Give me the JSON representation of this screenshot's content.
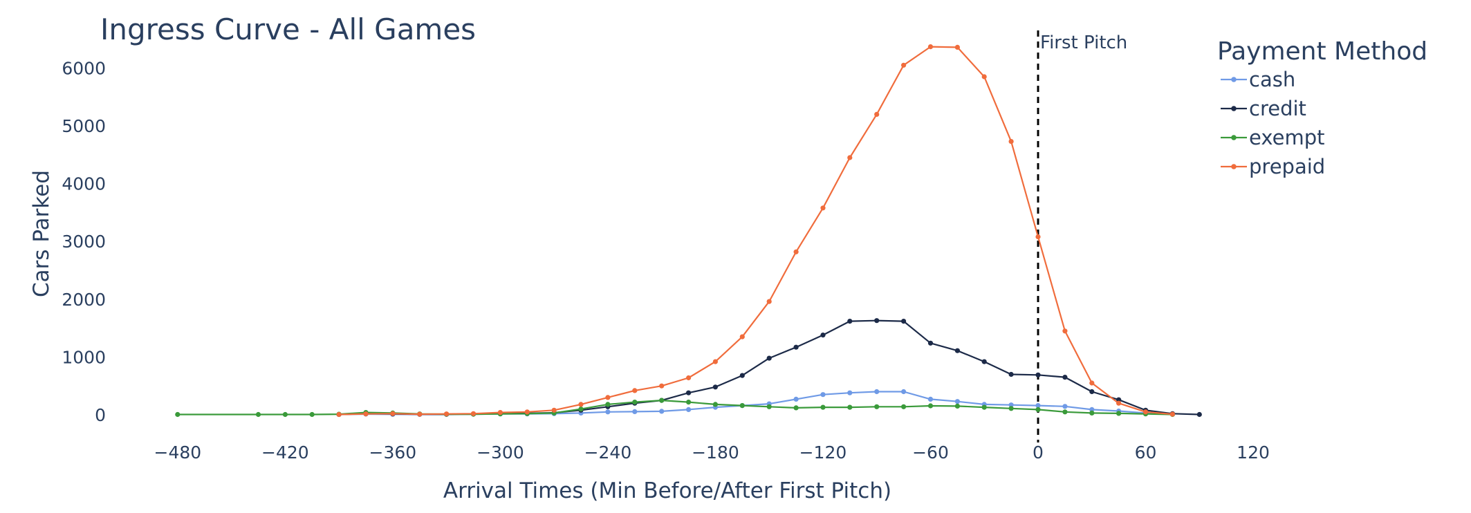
{
  "chart_data": {
    "type": "line",
    "title": "Ingress Curve - All Games",
    "xlabel": "Arrival Times (Min Before/After First Pitch)",
    "ylabel": "Cars Parked",
    "xlim": [
      -500,
      125
    ],
    "ylim": [
      -180,
      6700
    ],
    "x_ticks": [
      -480,
      -420,
      -360,
      -300,
      -240,
      -180,
      -120,
      -60,
      0,
      60,
      120
    ],
    "y_ticks": [
      0,
      1000,
      2000,
      3000,
      4000,
      5000,
      6000
    ],
    "grid": false,
    "legend": {
      "title": "Payment Method",
      "placement": "top-right"
    },
    "annotations": [
      {
        "type": "vline",
        "x": 0,
        "text": "First Pitch"
      }
    ],
    "series": [
      {
        "name": "cash",
        "color": "#6f9ae6",
        "points": [
          [
            -390,
            5
          ],
          [
            -375,
            12
          ],
          [
            -360,
            8
          ],
          [
            -345,
            5
          ],
          [
            -330,
            5
          ],
          [
            -315,
            10
          ],
          [
            -300,
            15
          ],
          [
            -285,
            15
          ],
          [
            -270,
            20
          ],
          [
            -255,
            30
          ],
          [
            -240,
            50
          ],
          [
            -225,
            55
          ],
          [
            -210,
            60
          ],
          [
            -195,
            90
          ],
          [
            -180,
            130
          ],
          [
            -165,
            160
          ],
          [
            -150,
            190
          ],
          [
            -135,
            270
          ],
          [
            -120,
            350
          ],
          [
            -105,
            380
          ],
          [
            -90,
            400
          ],
          [
            -75,
            400
          ],
          [
            -60,
            270
          ],
          [
            -45,
            230
          ],
          [
            -30,
            180
          ],
          [
            -15,
            170
          ],
          [
            0,
            160
          ],
          [
            15,
            145
          ],
          [
            30,
            90
          ],
          [
            45,
            65
          ],
          [
            60,
            30
          ],
          [
            75,
            10
          ]
        ]
      },
      {
        "name": "credit",
        "color": "#1c2a48",
        "points": [
          [
            -390,
            5
          ],
          [
            -375,
            20
          ],
          [
            -360,
            15
          ],
          [
            -345,
            10
          ],
          [
            -330,
            10
          ],
          [
            -315,
            15
          ],
          [
            -300,
            20
          ],
          [
            -285,
            25
          ],
          [
            -270,
            35
          ],
          [
            -255,
            80
          ],
          [
            -240,
            140
          ],
          [
            -225,
            200
          ],
          [
            -210,
            250
          ],
          [
            -195,
            380
          ],
          [
            -180,
            480
          ],
          [
            -165,
            680
          ],
          [
            -150,
            980
          ],
          [
            -135,
            1170
          ],
          [
            -120,
            1380
          ],
          [
            -105,
            1620
          ],
          [
            -90,
            1630
          ],
          [
            -75,
            1620
          ],
          [
            -60,
            1240
          ],
          [
            -45,
            1110
          ],
          [
            -30,
            920
          ],
          [
            -15,
            700
          ],
          [
            0,
            690
          ],
          [
            15,
            650
          ],
          [
            30,
            400
          ],
          [
            45,
            260
          ],
          [
            60,
            80
          ],
          [
            75,
            20
          ],
          [
            90,
            5
          ]
        ]
      },
      {
        "name": "exempt",
        "color": "#3a9a3a",
        "points": [
          [
            -480,
            5
          ],
          [
            -435,
            5
          ],
          [
            -420,
            5
          ],
          [
            -405,
            5
          ],
          [
            -390,
            10
          ],
          [
            -375,
            40
          ],
          [
            -360,
            30
          ],
          [
            -345,
            15
          ],
          [
            -330,
            10
          ],
          [
            -315,
            10
          ],
          [
            -300,
            15
          ],
          [
            -285,
            20
          ],
          [
            -270,
            30
          ],
          [
            -255,
            100
          ],
          [
            -240,
            180
          ],
          [
            -225,
            220
          ],
          [
            -210,
            250
          ],
          [
            -195,
            220
          ],
          [
            -180,
            180
          ],
          [
            -165,
            160
          ],
          [
            -150,
            140
          ],
          [
            -135,
            120
          ],
          [
            -120,
            130
          ],
          [
            -105,
            130
          ],
          [
            -90,
            140
          ],
          [
            -75,
            140
          ],
          [
            -60,
            155
          ],
          [
            -45,
            150
          ],
          [
            -30,
            130
          ],
          [
            -15,
            110
          ],
          [
            0,
            90
          ],
          [
            15,
            50
          ],
          [
            30,
            30
          ],
          [
            45,
            25
          ],
          [
            60,
            15
          ],
          [
            75,
            5
          ]
        ]
      },
      {
        "name": "prepaid",
        "color": "#f06c3c",
        "points": [
          [
            -390,
            5
          ],
          [
            -375,
            15
          ],
          [
            -360,
            20
          ],
          [
            -345,
            10
          ],
          [
            -330,
            15
          ],
          [
            -315,
            20
          ],
          [
            -300,
            40
          ],
          [
            -285,
            50
          ],
          [
            -270,
            80
          ],
          [
            -255,
            180
          ],
          [
            -240,
            300
          ],
          [
            -225,
            420
          ],
          [
            -210,
            500
          ],
          [
            -195,
            640
          ],
          [
            -180,
            920
          ],
          [
            -165,
            1350
          ],
          [
            -150,
            1960
          ],
          [
            -135,
            2820
          ],
          [
            -120,
            3580
          ],
          [
            -105,
            4450
          ],
          [
            -90,
            5200
          ],
          [
            -75,
            6050
          ],
          [
            -60,
            6370
          ],
          [
            -45,
            6360
          ],
          [
            -30,
            5850
          ],
          [
            -15,
            4730
          ],
          [
            0,
            3080
          ],
          [
            15,
            1450
          ],
          [
            30,
            550
          ],
          [
            45,
            200
          ],
          [
            60,
            50
          ],
          [
            75,
            10
          ]
        ]
      }
    ]
  }
}
